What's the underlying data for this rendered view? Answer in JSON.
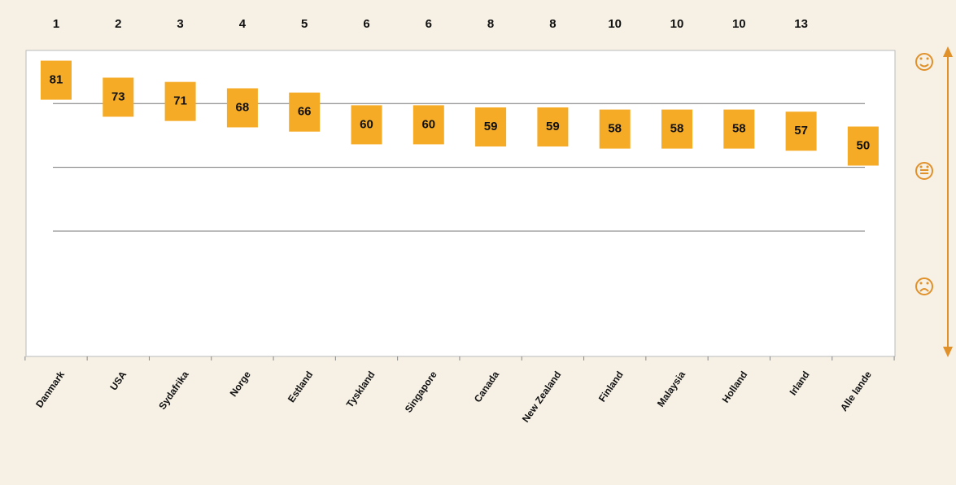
{
  "chart_data": {
    "type": "point",
    "categories": [
      "Danmark",
      "USA",
      "Sydafrika",
      "Norge",
      "Estland",
      "Tyskland",
      "Singapore",
      "Canada",
      "New Zealand",
      "Finland",
      "Malaysia",
      "Holland",
      "Irland",
      "Alle lande"
    ],
    "ranks": [
      1,
      2,
      3,
      4,
      5,
      6,
      6,
      8,
      8,
      10,
      10,
      10,
      13,
      null
    ],
    "values": [
      81,
      73,
      71,
      68,
      66,
      60,
      60,
      59,
      59,
      58,
      58,
      58,
      57,
      50
    ],
    "color": "#f6ab27",
    "ylim": [
      -49,
      95
    ],
    "yticks": [
      10,
      40,
      70
    ],
    "grid": true
  }
}
